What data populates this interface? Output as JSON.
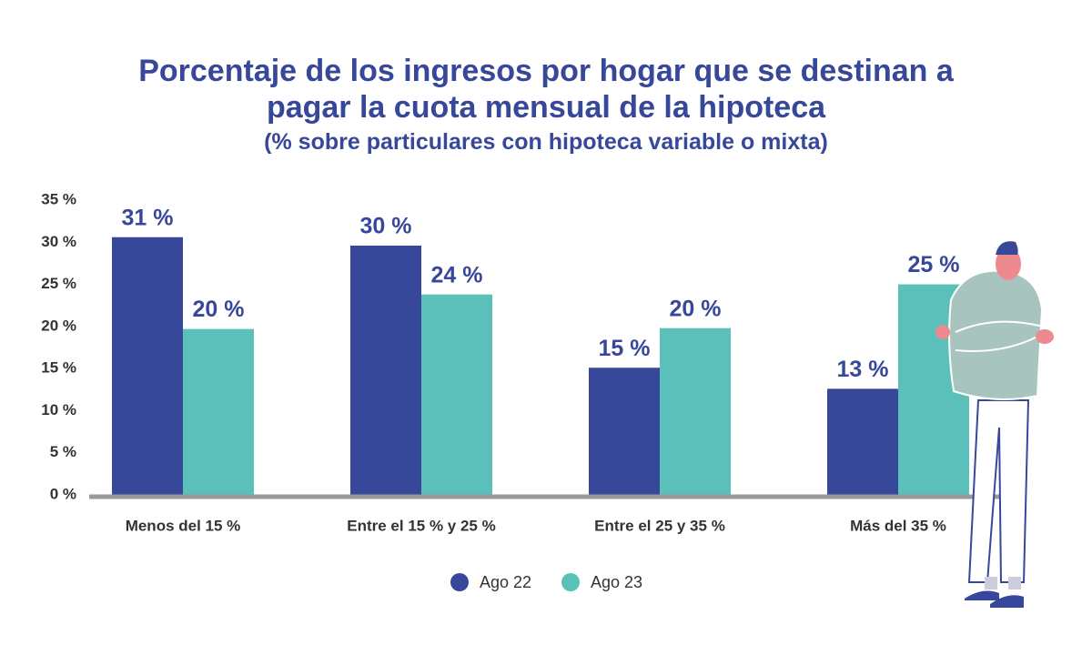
{
  "chart_data": {
    "type": "bar",
    "title": "Porcentaje de los ingresos por hogar que se destinan a pagar la cuota mensual de la hipoteca",
    "subtitle": "(% sobre particulares con hipoteca variable o mixta)",
    "categories": [
      "Menos del 15 %",
      "Entre el 15 % y 25 %",
      "Entre el 25 y 35 %",
      "Más del 35 %"
    ],
    "series": [
      {
        "name": "Ago 22",
        "color": "#37479a",
        "values": [
          30.6,
          29.6,
          15.1,
          12.6
        ],
        "value_labels": [
          "31 %",
          "30 %",
          "15 %",
          "13 %"
        ]
      },
      {
        "name": "Ago 23",
        "color": "#5bc0b9",
        "values": [
          19.7,
          23.8,
          19.8,
          25
        ],
        "value_labels": [
          "20 %",
          "24 %",
          "20 %",
          "25 %"
        ]
      }
    ],
    "ylim": [
      0,
      35
    ],
    "yticks": [
      {
        "value": 0,
        "label": "0 %"
      },
      {
        "value": 5,
        "label": "5 %"
      },
      {
        "value": 10,
        "label": "10 %"
      },
      {
        "value": 15,
        "label": "15 %"
      },
      {
        "value": 20,
        "label": "20 %"
      },
      {
        "value": 25,
        "label": "25 %"
      },
      {
        "value": 30,
        "label": "30 %"
      },
      {
        "value": 35,
        "label": "35 %"
      }
    ],
    "grid": false,
    "legend": "bottom"
  }
}
